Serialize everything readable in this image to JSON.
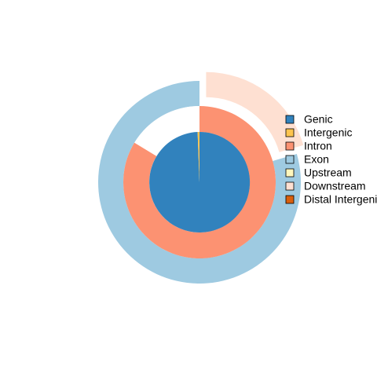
{
  "chart_data": {
    "type": "pie",
    "rings": [
      {
        "name": "",
        "slices": [
          {
            "label": "Genic",
            "value": 99.4,
            "color": "#3182BD"
          },
          {
            "label": "Intergenic",
            "value": 0.6,
            "color": "#FEC44F"
          }
        ]
      },
      {
        "name": "",
        "slices": [
          {
            "label": "Intron",
            "value": 83.7,
            "color": "#FC9272"
          },
          {
            "label": "White gap",
            "value": 16.3,
            "color": "#FFFFFF"
          }
        ]
      },
      {
        "name": "",
        "slices": [
          {
            "label": "Downstream",
            "value": 20.5,
            "color": "#FEE0D2"
          },
          {
            "label": "Exon",
            "value": 79.5,
            "color": "#9ECAE1"
          }
        ]
      }
    ],
    "legend": {
      "position": "right",
      "items": [
        {
          "label": "Genic",
          "color": "#3182BD"
        },
        {
          "label": "Intergenic",
          "color": "#FEC44F"
        },
        {
          "label": "Intron",
          "color": "#FC9272"
        },
        {
          "label": "Exon",
          "color": "#9ECAE1"
        },
        {
          "label": "Upstream",
          "color": "#FFF7BC"
        },
        {
          "label": "Downstream",
          "color": "#FEE0D2"
        },
        {
          "label": "Distal Intergenic",
          "color": "#D95F0E"
        }
      ]
    }
  }
}
